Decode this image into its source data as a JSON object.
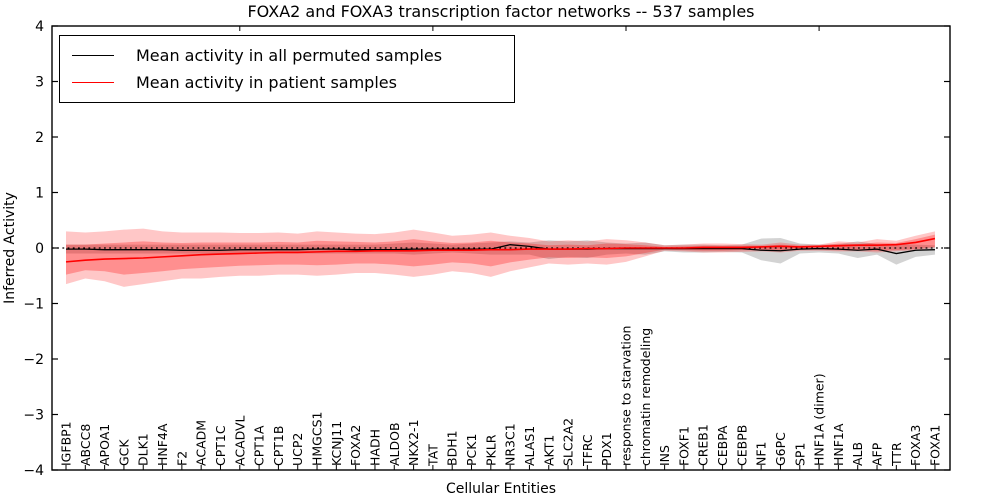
{
  "chart_data": {
    "type": "line",
    "title": "FOXA2 and FOXA3 transcription factor networks -- 537 samples",
    "xlabel": "Cellular Entities",
    "ylabel": "Inferred Activity",
    "ylim": [
      -4,
      4
    ],
    "ytick_labels": [
      "4",
      "3",
      "2",
      "1",
      "0",
      "−1",
      "−2",
      "−3",
      "−4"
    ],
    "ytick_values": [
      4,
      3,
      2,
      1,
      0,
      -1,
      -2,
      -3,
      -4
    ],
    "grid": false,
    "legend_position": "upper left",
    "zero_line": {
      "value": 0,
      "style": "dotted",
      "color": "#000000"
    },
    "categories": [
      "IGFBP1",
      "ABCC8",
      "APOA1",
      "GCK",
      "DLK1",
      "HNF4A",
      "F2",
      "ACADM",
      "CPT1C",
      "ACADVL",
      "CPT1A",
      "CPT1B",
      "UCP2",
      "HMGCS1",
      "KCNJ11",
      "FOXA2",
      "HADH",
      "ALDOB",
      "NKX2-1",
      "TAT",
      "BDH1",
      "PCK1",
      "PKLR",
      "NR3C1",
      "ALAS1",
      "AKT1",
      "SLC2A2",
      "TFRC",
      "PDX1",
      "response to starvation",
      "chromatin remodeling",
      "INS",
      "FOXF1",
      "CREB1",
      "CEBPA",
      "CEBPB",
      "NF1",
      "G6PC",
      "SP1",
      "HNF1A (dimer)",
      "HNF1A",
      "ALB",
      "AFP",
      "TTR",
      "FOXA3",
      "FOXA1"
    ],
    "series": [
      {
        "name": "Mean activity in all permuted samples",
        "color": "#000000",
        "band_color": "rgba(110,110,110,0.30)",
        "values": [
          -0.02,
          -0.02,
          -0.03,
          -0.03,
          -0.03,
          -0.03,
          -0.04,
          -0.04,
          -0.04,
          -0.03,
          -0.03,
          -0.03,
          -0.03,
          -0.02,
          -0.02,
          -0.03,
          -0.03,
          -0.03,
          -0.02,
          -0.02,
          -0.02,
          -0.02,
          -0.02,
          0.06,
          0.03,
          -0.02,
          -0.02,
          -0.02,
          -0.01,
          -0.01,
          -0.01,
          -0.01,
          -0.01,
          -0.01,
          -0.01,
          -0.01,
          -0.04,
          -0.05,
          -0.02,
          -0.01,
          -0.02,
          -0.04,
          -0.02,
          -0.1,
          -0.04,
          -0.03
        ],
        "band_upper": [
          0.06,
          0.06,
          0.06,
          0.06,
          0.06,
          0.06,
          0.06,
          0.06,
          0.06,
          0.06,
          0.06,
          0.06,
          0.06,
          0.06,
          0.06,
          0.06,
          0.06,
          0.08,
          0.1,
          0.08,
          0.06,
          0.08,
          0.1,
          0.12,
          0.1,
          0.14,
          0.12,
          0.14,
          0.1,
          0.08,
          0.1,
          0.05,
          0.06,
          0.06,
          0.05,
          0.06,
          0.17,
          0.18,
          0.08,
          0.06,
          0.07,
          0.12,
          0.07,
          0.07,
          0.06,
          0.05
        ],
        "band_lower": [
          -0.1,
          -0.1,
          -0.1,
          -0.1,
          -0.1,
          -0.1,
          -0.1,
          -0.1,
          -0.1,
          -0.1,
          -0.1,
          -0.1,
          -0.1,
          -0.1,
          -0.1,
          -0.1,
          -0.1,
          -0.1,
          -0.12,
          -0.1,
          -0.08,
          -0.1,
          -0.12,
          -0.12,
          -0.12,
          -0.2,
          -0.16,
          -0.18,
          -0.12,
          -0.1,
          -0.12,
          -0.06,
          -0.08,
          -0.08,
          -0.07,
          -0.08,
          -0.22,
          -0.28,
          -0.1,
          -0.08,
          -0.1,
          -0.18,
          -0.12,
          -0.3,
          -0.16,
          -0.12
        ]
      },
      {
        "name": "Mean activity in patient samples",
        "color": "#ff0000",
        "band_color": "rgba(255,0,0,0.22)",
        "inner_band_color": "rgba(255,0,0,0.28)",
        "values": [
          -0.25,
          -0.22,
          -0.2,
          -0.19,
          -0.18,
          -0.16,
          -0.14,
          -0.12,
          -0.11,
          -0.1,
          -0.09,
          -0.08,
          -0.08,
          -0.07,
          -0.06,
          -0.06,
          -0.05,
          -0.05,
          -0.05,
          -0.04,
          -0.04,
          -0.04,
          -0.03,
          -0.03,
          -0.02,
          -0.02,
          -0.02,
          -0.01,
          -0.01,
          0.0,
          0.0,
          0.0,
          0.0,
          0.01,
          0.01,
          0.01,
          0.02,
          0.03,
          0.02,
          0.03,
          0.04,
          0.05,
          0.05,
          0.06,
          0.1,
          0.17
        ],
        "band_upper": [
          0.3,
          0.28,
          0.3,
          0.33,
          0.35,
          0.3,
          0.28,
          0.28,
          0.28,
          0.27,
          0.27,
          0.28,
          0.26,
          0.3,
          0.28,
          0.26,
          0.25,
          0.28,
          0.33,
          0.28,
          0.22,
          0.24,
          0.28,
          0.22,
          0.18,
          0.12,
          0.14,
          0.12,
          0.16,
          0.14,
          0.1,
          0.05,
          0.06,
          0.08,
          0.08,
          0.07,
          0.06,
          0.1,
          0.06,
          0.06,
          0.12,
          0.1,
          0.16,
          0.13,
          0.22,
          0.3
        ],
        "band_lower": [
          -0.65,
          -0.55,
          -0.6,
          -0.7,
          -0.65,
          -0.6,
          -0.55,
          -0.55,
          -0.52,
          -0.5,
          -0.5,
          -0.48,
          -0.48,
          -0.5,
          -0.48,
          -0.45,
          -0.45,
          -0.48,
          -0.52,
          -0.48,
          -0.42,
          -0.45,
          -0.52,
          -0.42,
          -0.35,
          -0.28,
          -0.3,
          -0.28,
          -0.3,
          -0.25,
          -0.15,
          -0.05,
          -0.06,
          -0.08,
          -0.08,
          -0.07,
          -0.06,
          -0.08,
          -0.05,
          -0.05,
          -0.06,
          -0.06,
          -0.08,
          -0.06,
          -0.04,
          0.0
        ],
        "inner_band_upper": [
          0.06,
          0.06,
          0.08,
          0.1,
          0.12,
          0.1,
          0.09,
          0.1,
          0.1,
          0.1,
          0.1,
          0.11,
          0.1,
          0.13,
          0.12,
          0.11,
          0.1,
          0.12,
          0.16,
          0.12,
          0.09,
          0.1,
          0.13,
          0.1,
          0.08,
          0.05,
          0.06,
          0.05,
          0.08,
          0.07,
          0.05,
          0.02,
          0.03,
          0.04,
          0.04,
          0.04,
          0.04,
          0.06,
          0.04,
          0.04,
          0.08,
          0.07,
          0.1,
          0.09,
          0.16,
          0.24
        ],
        "inner_band_lower": [
          -0.48,
          -0.4,
          -0.42,
          -0.48,
          -0.45,
          -0.42,
          -0.38,
          -0.36,
          -0.34,
          -0.32,
          -0.31,
          -0.3,
          -0.3,
          -0.31,
          -0.3,
          -0.28,
          -0.28,
          -0.3,
          -0.33,
          -0.3,
          -0.26,
          -0.28,
          -0.33,
          -0.26,
          -0.21,
          -0.17,
          -0.18,
          -0.17,
          -0.18,
          -0.15,
          -0.09,
          -0.03,
          -0.04,
          -0.05,
          -0.05,
          -0.04,
          -0.04,
          -0.05,
          -0.03,
          -0.03,
          -0.04,
          -0.04,
          -0.05,
          -0.04,
          -0.02,
          0.02
        ]
      }
    ]
  }
}
